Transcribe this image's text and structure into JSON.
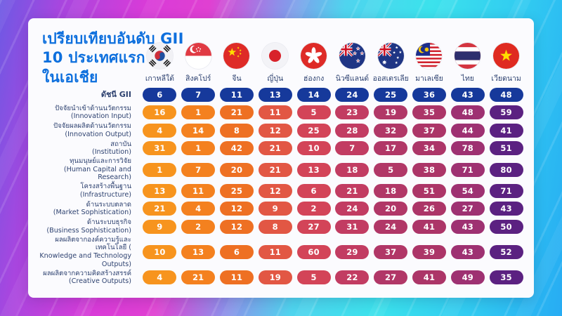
{
  "title": {
    "line1": "เปรียบเทียบอันดับ GII",
    "line2": "10 ประเทศแรก",
    "line3": "ในเอเชีย"
  },
  "colors": {
    "title_blue": "#0D6FDD",
    "label_navy": "#2E4270",
    "card_bg": "#FBFBFE",
    "gii_pill": "#16399B",
    "column_pills": [
      "#F7941E",
      "#F4811F",
      "#EE7023",
      "#E25744",
      "#D34458",
      "#C23C62",
      "#B13767",
      "#AC3568",
      "#9E3172",
      "#5B2181"
    ]
  },
  "flags": [
    "south-korea",
    "singapore",
    "china",
    "japan",
    "hong-kong",
    "new-zealand",
    "australia",
    "malaysia",
    "thailand",
    "vietnam"
  ],
  "chart_data": {
    "type": "table",
    "title": "เปรียบเทียบอันดับ GII 10 ประเทศแรกในเอเชีย",
    "categories": [
      "เกาหลีใต้",
      "สิงคโปร์",
      "จีน",
      "ญี่ปุ่น",
      "ฮ่องกง",
      "นิวซีแลนด์",
      "ออสเตรเลีย",
      "มาเลเซีย",
      "ไทย",
      "เวียดนาม"
    ],
    "rows": [
      {
        "label_th": "ดัชนี GII",
        "label_en": "",
        "is_index": true,
        "values": [
          6,
          7,
          11,
          13,
          14,
          24,
          25,
          36,
          43,
          48
        ]
      },
      {
        "label_th": "ปัจจัยนำเข้าด้านนวัตกรรม",
        "label_en": "(Innovation Input)",
        "values": [
          16,
          1,
          21,
          11,
          5,
          23,
          19,
          35,
          48,
          59
        ]
      },
      {
        "label_th": "ปัจจัยผลผลิตด้านนวัตกรรม",
        "label_en": "(Innovation Output)",
        "values": [
          4,
          14,
          8,
          12,
          25,
          28,
          32,
          37,
          44,
          41
        ]
      },
      {
        "label_th": "สถาบัน",
        "label_en": "(Institution)",
        "values": [
          31,
          1,
          42,
          21,
          10,
          7,
          17,
          34,
          78,
          51
        ]
      },
      {
        "label_th": "ทุนมนุษย์และการวิจัย",
        "label_en": "(Human Capital and Research)",
        "values": [
          1,
          7,
          20,
          21,
          13,
          18,
          5,
          38,
          71,
          80
        ]
      },
      {
        "label_th": "โครงสร้างพื้นฐาน",
        "label_en": "(Infrastructure)",
        "values": [
          13,
          11,
          25,
          12,
          6,
          21,
          18,
          51,
          54,
          71
        ]
      },
      {
        "label_th": "ด้านระบบตลาด",
        "label_en": "(Market Sophistication)",
        "values": [
          21,
          4,
          12,
          9,
          2,
          24,
          20,
          26,
          27,
          43
        ]
      },
      {
        "label_th": "ด้านระบบธุรกิจ",
        "label_en": "(Business Sophistication)",
        "values": [
          9,
          2,
          12,
          8,
          27,
          31,
          24,
          41,
          43,
          50
        ]
      },
      {
        "label_th": "ผลผลิตจากองค์ความรู้และเทคโนโลยี (",
        "label_en": "Knowledge and Technology Outputs)",
        "values": [
          10,
          13,
          6,
          11,
          60,
          29,
          37,
          39,
          43,
          52
        ]
      },
      {
        "label_th": "ผลผลิตจากความคิดสร้างสรรค์",
        "label_en": "(Creative Outputs)",
        "values": [
          4,
          21,
          11,
          19,
          5,
          22,
          27,
          41,
          49,
          35
        ]
      }
    ]
  }
}
